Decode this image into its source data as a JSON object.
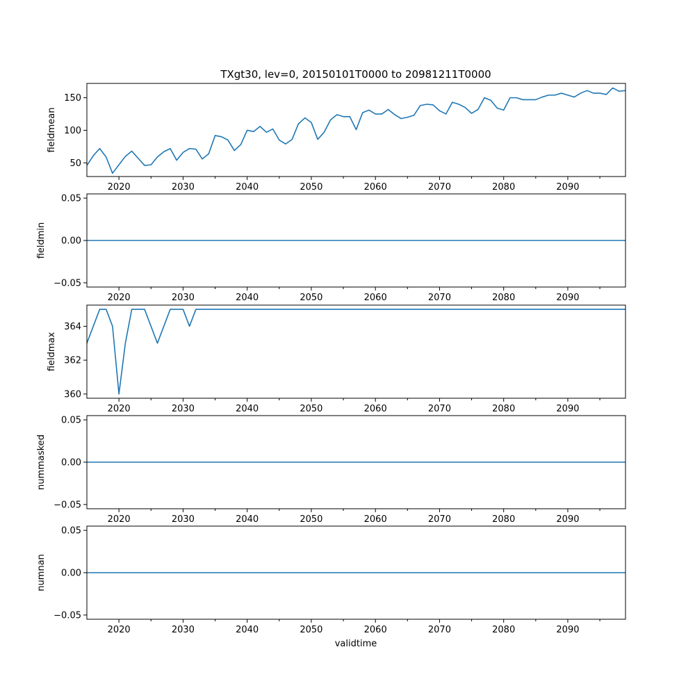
{
  "chart_data": {
    "type": "line",
    "title": "TXgt30, lev=0, 20150101T0000 to 20981211T0000",
    "xlabel": "validtime",
    "xlim": [
      2015,
      2099
    ],
    "x_ticks": [
      2020,
      2030,
      2040,
      2050,
      2060,
      2070,
      2080,
      2090
    ],
    "x_ticks_minor": [
      2025,
      2035,
      2045,
      2055,
      2065,
      2075,
      2085,
      2095
    ],
    "line_color": "#1f77b4",
    "grid": false,
    "x": [
      2015,
      2016,
      2017,
      2018,
      2019,
      2020,
      2021,
      2022,
      2023,
      2024,
      2025,
      2026,
      2027,
      2028,
      2029,
      2030,
      2031,
      2032,
      2033,
      2034,
      2035,
      2036,
      2037,
      2038,
      2039,
      2040,
      2041,
      2042,
      2043,
      2044,
      2045,
      2046,
      2047,
      2048,
      2049,
      2050,
      2051,
      2052,
      2053,
      2054,
      2055,
      2056,
      2057,
      2058,
      2059,
      2060,
      2061,
      2062,
      2063,
      2064,
      2065,
      2066,
      2067,
      2068,
      2069,
      2070,
      2071,
      2072,
      2073,
      2074,
      2075,
      2076,
      2077,
      2078,
      2079,
      2080,
      2081,
      2082,
      2083,
      2084,
      2085,
      2086,
      2087,
      2088,
      2089,
      2090,
      2091,
      2092,
      2093,
      2094,
      2095,
      2096,
      2097,
      2098,
      2099
    ],
    "panels": [
      {
        "ylabel": "fieldmean",
        "ylim": [
          29,
          172
        ],
        "y_ticks": [
          50,
          100,
          150
        ],
        "y_tick_labels": [
          "50",
          "100",
          "150"
        ],
        "values": [
          46,
          61,
          72,
          59,
          34,
          47,
          60,
          68,
          57,
          46,
          47,
          59,
          67,
          72,
          54,
          66,
          72,
          71,
          56,
          64,
          92,
          90,
          85,
          69,
          78,
          100,
          98,
          106,
          97,
          102,
          85,
          79,
          86,
          110,
          119,
          112,
          86,
          97,
          116,
          124,
          121,
          121,
          101,
          127,
          131,
          125,
          125,
          132,
          124,
          118,
          120,
          123,
          138,
          140,
          139,
          130,
          125,
          143,
          140,
          135,
          126,
          132,
          150,
          146,
          134,
          131,
          150,
          150,
          147,
          147,
          147,
          151,
          154,
          154,
          157,
          154,
          151,
          157,
          161,
          157,
          157,
          155,
          165,
          160,
          161
        ]
      },
      {
        "ylabel": "fieldmin",
        "ylim": [
          -0.055,
          0.055
        ],
        "y_ticks": [
          -0.05,
          0,
          0.05
        ],
        "y_tick_labels": [
          "−0.05",
          "0.00",
          "0.05"
        ],
        "values": [
          0,
          0,
          0,
          0,
          0,
          0,
          0,
          0,
          0,
          0,
          0,
          0,
          0,
          0,
          0,
          0,
          0,
          0,
          0,
          0,
          0,
          0,
          0,
          0,
          0,
          0,
          0,
          0,
          0,
          0,
          0,
          0,
          0,
          0,
          0,
          0,
          0,
          0,
          0,
          0,
          0,
          0,
          0,
          0,
          0,
          0,
          0,
          0,
          0,
          0,
          0,
          0,
          0,
          0,
          0,
          0,
          0,
          0,
          0,
          0,
          0,
          0,
          0,
          0,
          0,
          0,
          0,
          0,
          0,
          0,
          0,
          0,
          0,
          0,
          0,
          0,
          0,
          0,
          0,
          0,
          0,
          0,
          0,
          0,
          0
        ]
      },
      {
        "ylabel": "fieldmax",
        "ylim": [
          359.75,
          365.25
        ],
        "y_ticks": [
          360,
          362,
          364
        ],
        "y_tick_labels": [
          "360",
          "362",
          "364"
        ],
        "values": [
          363,
          364,
          365,
          365,
          364,
          360,
          363,
          365,
          365,
          365,
          364,
          363,
          364,
          365,
          365,
          365,
          364,
          365,
          365,
          365,
          365,
          365,
          365,
          365,
          365,
          365,
          365,
          365,
          365,
          365,
          365,
          365,
          365,
          365,
          365,
          365,
          365,
          365,
          365,
          365,
          365,
          365,
          365,
          365,
          365,
          365,
          365,
          365,
          365,
          365,
          365,
          365,
          365,
          365,
          365,
          365,
          365,
          365,
          365,
          365,
          365,
          365,
          365,
          365,
          365,
          365,
          365,
          365,
          365,
          365,
          365,
          365,
          365,
          365,
          365,
          365,
          365,
          365,
          365,
          365,
          365,
          365,
          365,
          365,
          365
        ]
      },
      {
        "ylabel": "nummasked",
        "ylim": [
          -0.055,
          0.055
        ],
        "y_ticks": [
          -0.05,
          0,
          0.05
        ],
        "y_tick_labels": [
          "−0.05",
          "0.00",
          "0.05"
        ],
        "values": [
          0,
          0,
          0,
          0,
          0,
          0,
          0,
          0,
          0,
          0,
          0,
          0,
          0,
          0,
          0,
          0,
          0,
          0,
          0,
          0,
          0,
          0,
          0,
          0,
          0,
          0,
          0,
          0,
          0,
          0,
          0,
          0,
          0,
          0,
          0,
          0,
          0,
          0,
          0,
          0,
          0,
          0,
          0,
          0,
          0,
          0,
          0,
          0,
          0,
          0,
          0,
          0,
          0,
          0,
          0,
          0,
          0,
          0,
          0,
          0,
          0,
          0,
          0,
          0,
          0,
          0,
          0,
          0,
          0,
          0,
          0,
          0,
          0,
          0,
          0,
          0,
          0,
          0,
          0,
          0,
          0,
          0,
          0,
          0,
          0
        ]
      },
      {
        "ylabel": "numnan",
        "ylim": [
          -0.055,
          0.055
        ],
        "y_ticks": [
          -0.05,
          0,
          0.05
        ],
        "y_tick_labels": [
          "−0.05",
          "0.00",
          "0.05"
        ],
        "values": [
          0,
          0,
          0,
          0,
          0,
          0,
          0,
          0,
          0,
          0,
          0,
          0,
          0,
          0,
          0,
          0,
          0,
          0,
          0,
          0,
          0,
          0,
          0,
          0,
          0,
          0,
          0,
          0,
          0,
          0,
          0,
          0,
          0,
          0,
          0,
          0,
          0,
          0,
          0,
          0,
          0,
          0,
          0,
          0,
          0,
          0,
          0,
          0,
          0,
          0,
          0,
          0,
          0,
          0,
          0,
          0,
          0,
          0,
          0,
          0,
          0,
          0,
          0,
          0,
          0,
          0,
          0,
          0,
          0,
          0,
          0,
          0,
          0,
          0,
          0,
          0,
          0,
          0,
          0,
          0,
          0,
          0,
          0,
          0,
          0
        ]
      }
    ]
  }
}
